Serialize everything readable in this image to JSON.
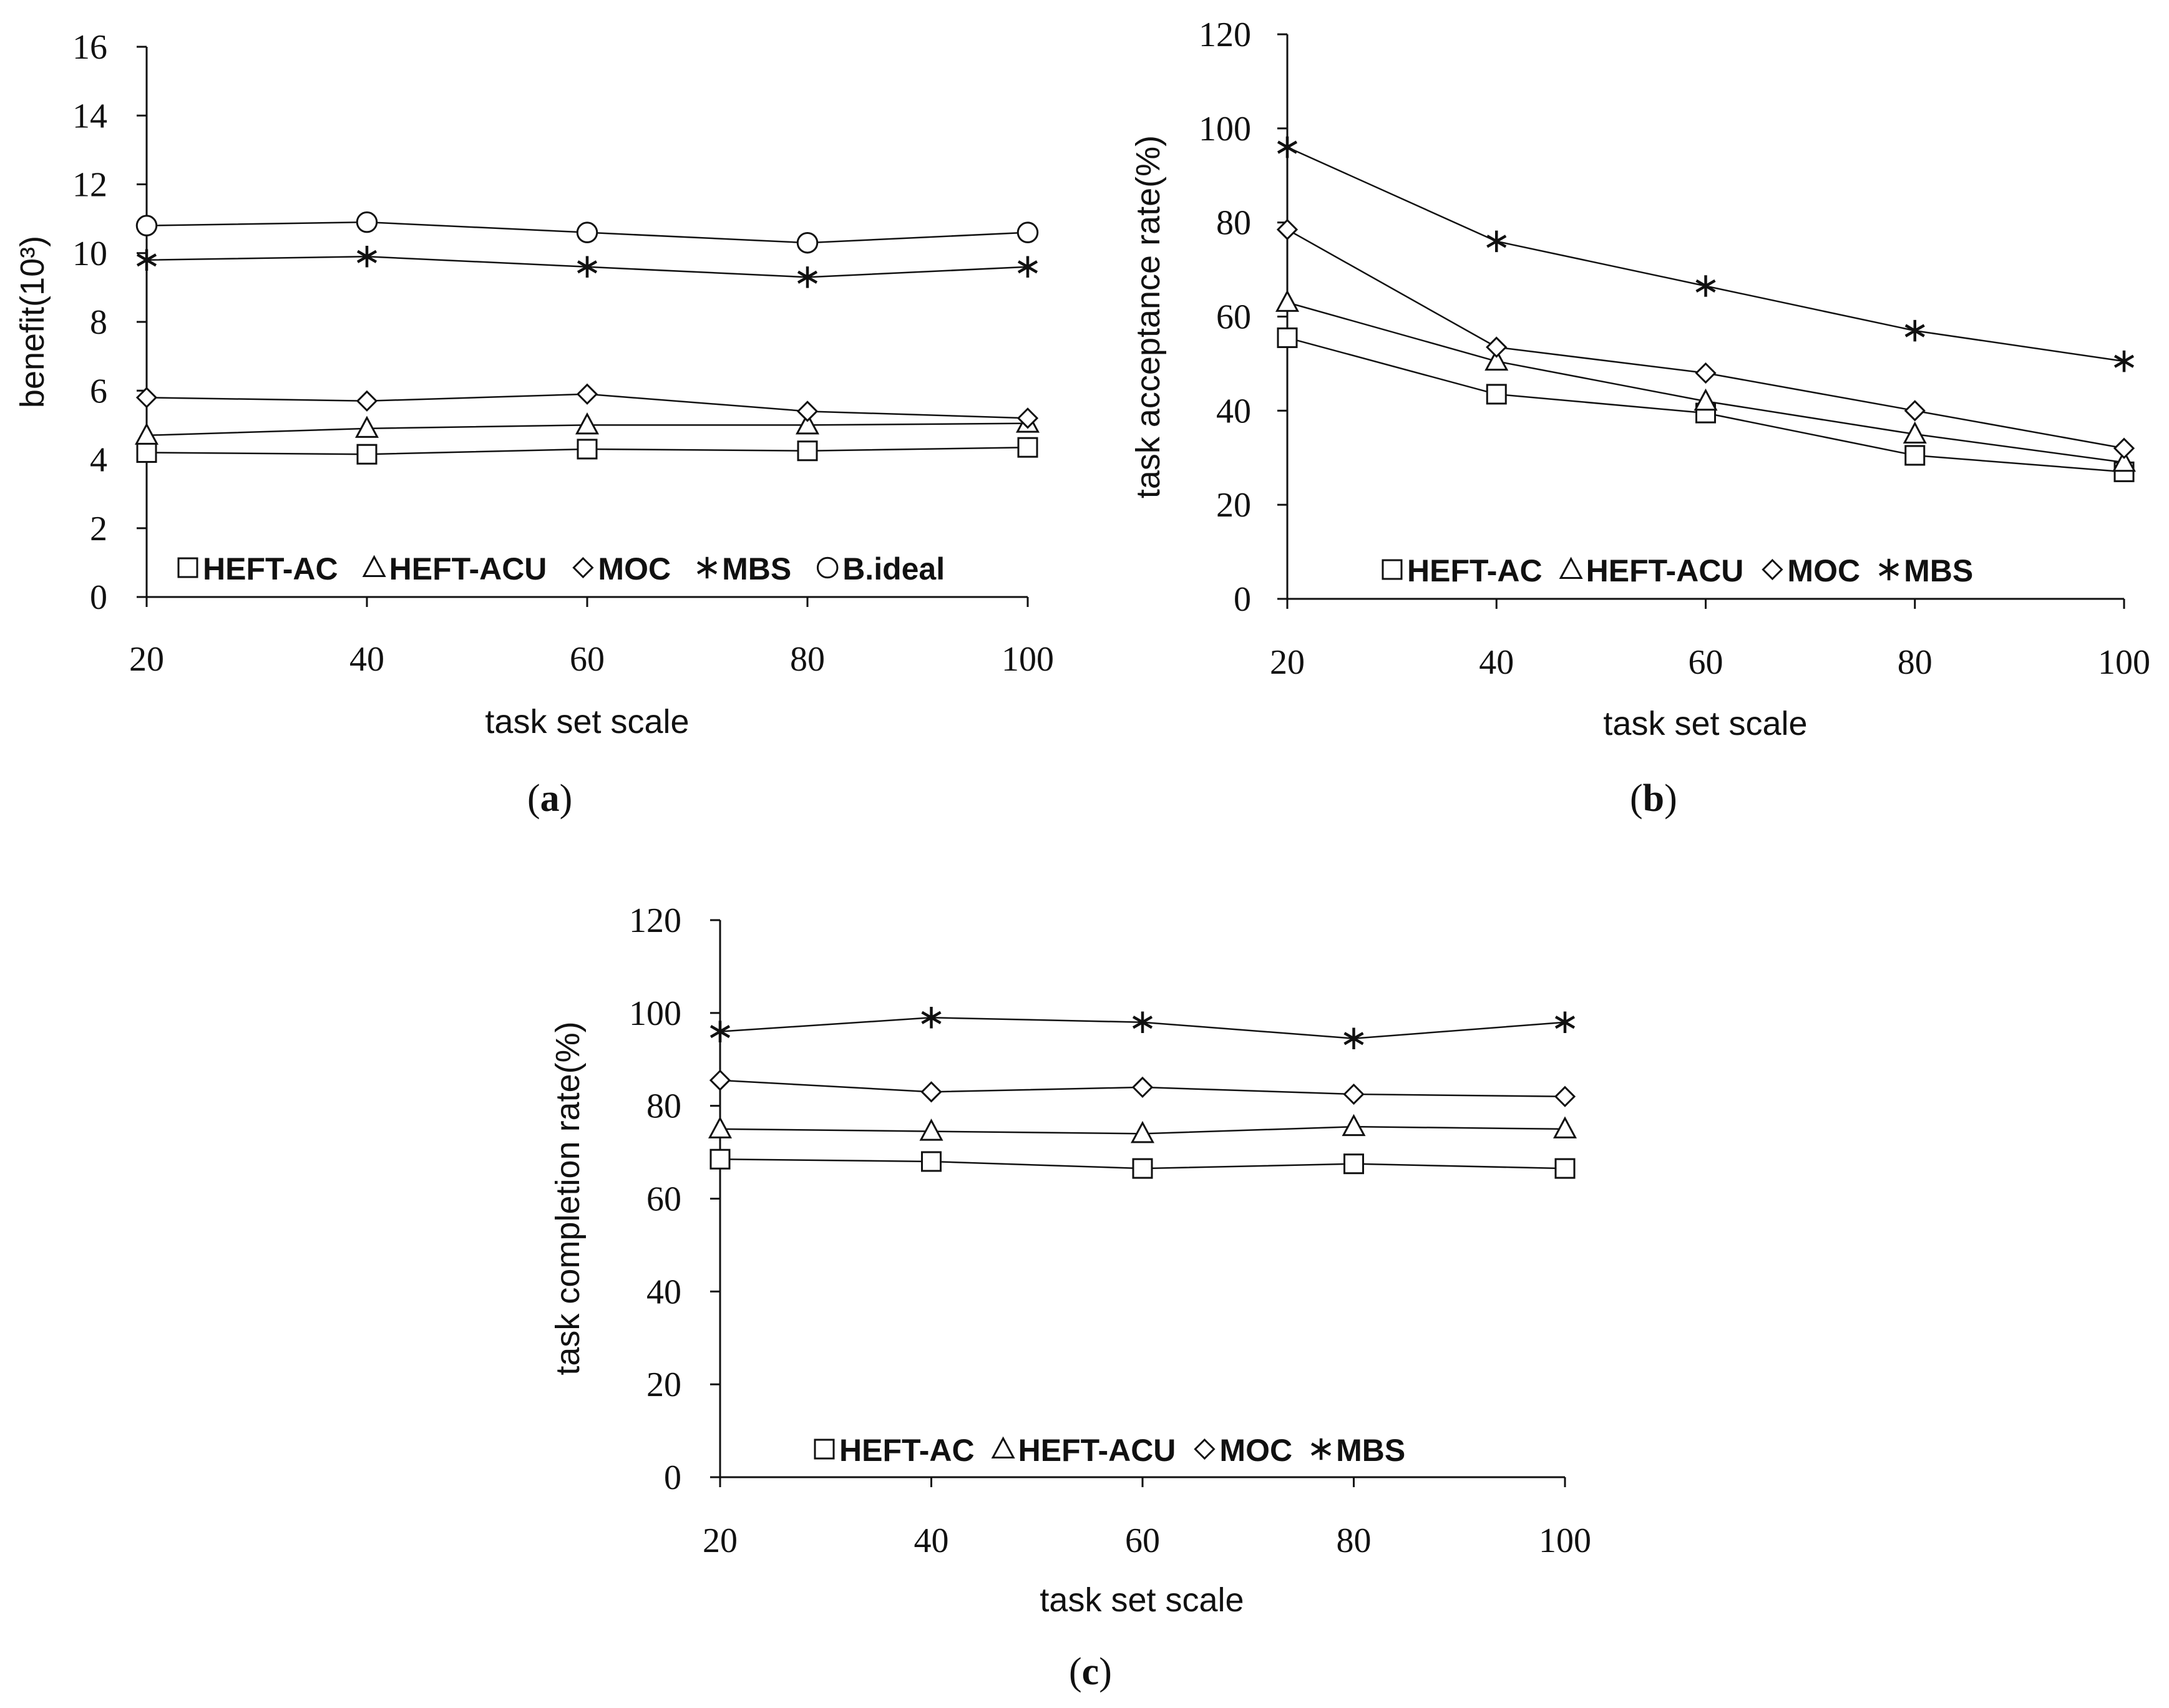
{
  "chart_data": [
    {
      "id": "a",
      "type": "line",
      "caption_open": "(",
      "caption_letter": "a",
      "caption_close": ")",
      "xlabel": "task set scale",
      "ylabel": "benefit(10³)",
      "x": [
        20,
        40,
        60,
        80,
        100
      ],
      "x_tick_labels": [
        "20",
        "40",
        "60",
        "80",
        "100"
      ],
      "ylim": [
        0,
        16
      ],
      "y_ticks": [
        0,
        2,
        4,
        6,
        8,
        10,
        12,
        14,
        16
      ],
      "y_tick_labels": [
        "0",
        "2",
        "4",
        "6",
        "8",
        "10",
        "12",
        "14",
        "16"
      ],
      "grid": false,
      "legend_position": "bottom-inside",
      "series": [
        {
          "name": "HEFT-AC",
          "marker": "square",
          "values": [
            4.2,
            4.15,
            4.3,
            4.25,
            4.35
          ]
        },
        {
          "name": "HEFT-ACU",
          "marker": "triangle",
          "values": [
            4.7,
            4.9,
            5.0,
            5.0,
            5.05
          ]
        },
        {
          "name": "MOC",
          "marker": "diamond",
          "values": [
            5.8,
            5.7,
            5.9,
            5.4,
            5.2
          ]
        },
        {
          "name": "MBS",
          "marker": "star",
          "values": [
            9.8,
            9.9,
            9.6,
            9.3,
            9.6
          ]
        },
        {
          "name": "B.ideal",
          "marker": "circle",
          "values": [
            10.8,
            10.9,
            10.6,
            10.3,
            10.6
          ]
        }
      ]
    },
    {
      "id": "b",
      "type": "line",
      "caption_open": "(",
      "caption_letter": "b",
      "caption_close": ")",
      "xlabel": "task set scale",
      "ylabel": "task acceptance rate(%)",
      "x": [
        20,
        40,
        60,
        80,
        100
      ],
      "x_tick_labels": [
        "20",
        "40",
        "60",
        "80",
        "100"
      ],
      "ylim": [
        0,
        120
      ],
      "y_ticks": [
        0,
        20,
        40,
        60,
        80,
        100,
        120
      ],
      "y_tick_labels": [
        "0",
        "20",
        "40",
        "60",
        "80",
        "100",
        "120"
      ],
      "grid": false,
      "legend_position": "bottom-inside",
      "series": [
        {
          "name": "HEFT-AC",
          "marker": "square",
          "values": [
            55.5,
            43.5,
            39.5,
            30.5,
            27
          ]
        },
        {
          "name": "HEFT-ACU",
          "marker": "triangle",
          "values": [
            63,
            50.5,
            42,
            35,
            29
          ]
        },
        {
          "name": "MOC",
          "marker": "diamond",
          "values": [
            78.5,
            53.5,
            48,
            40,
            32
          ]
        },
        {
          "name": "MBS",
          "marker": "star",
          "values": [
            96,
            76,
            66.5,
            57,
            50.5
          ]
        }
      ]
    },
    {
      "id": "c",
      "type": "line",
      "caption_open": "(",
      "caption_letter": "c",
      "caption_close": ")",
      "xlabel": "task  set scale",
      "ylabel": "task completion rate(%)",
      "x": [
        20,
        40,
        60,
        80,
        100
      ],
      "x_tick_labels": [
        "20",
        "40",
        "60",
        "80",
        "100"
      ],
      "ylim": [
        0,
        120
      ],
      "y_ticks": [
        0,
        20,
        40,
        60,
        80,
        100,
        120
      ],
      "y_tick_labels": [
        "0",
        "20",
        "40",
        "60",
        "80",
        "100",
        "120"
      ],
      "grid": false,
      "legend_position": "bottom-inside",
      "series": [
        {
          "name": "HEFT-AC",
          "marker": "square",
          "values": [
            68.5,
            68,
            66.5,
            67.5,
            66.5
          ]
        },
        {
          "name": "HEFT-ACU",
          "marker": "triangle",
          "values": [
            75,
            74.5,
            74,
            75.5,
            75
          ]
        },
        {
          "name": "MOC",
          "marker": "diamond",
          "values": [
            85.5,
            83,
            84,
            82.5,
            82
          ]
        },
        {
          "name": "MBS",
          "marker": "star",
          "values": [
            96,
            99,
            98,
            94.5,
            98
          ]
        }
      ]
    }
  ]
}
